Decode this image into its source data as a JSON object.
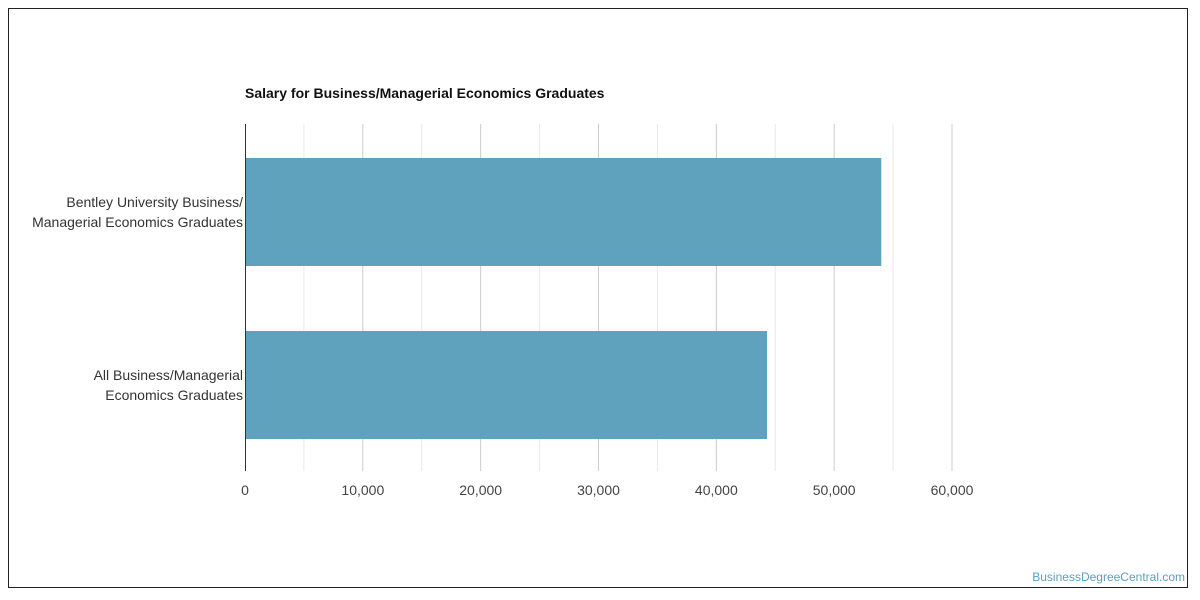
{
  "chart_data": {
    "type": "bar",
    "orientation": "horizontal",
    "title": "Salary for Business/Managerial Economics Graduates",
    "categories": [
      [
        "Bentley University Business/",
        "Managerial Economics Graduates"
      ],
      [
        "All Business/Managerial",
        "Economics Graduates"
      ]
    ],
    "values": [
      54000,
      44300
    ],
    "xlim": [
      0,
      60000
    ],
    "x_ticks": [
      "0",
      "10,000",
      "20,000",
      "30,000",
      "40,000",
      "50,000",
      "60,000"
    ],
    "grid": true,
    "bar_color": "#5ea2be"
  },
  "watermark": "BusinessDegreeCentral.com"
}
